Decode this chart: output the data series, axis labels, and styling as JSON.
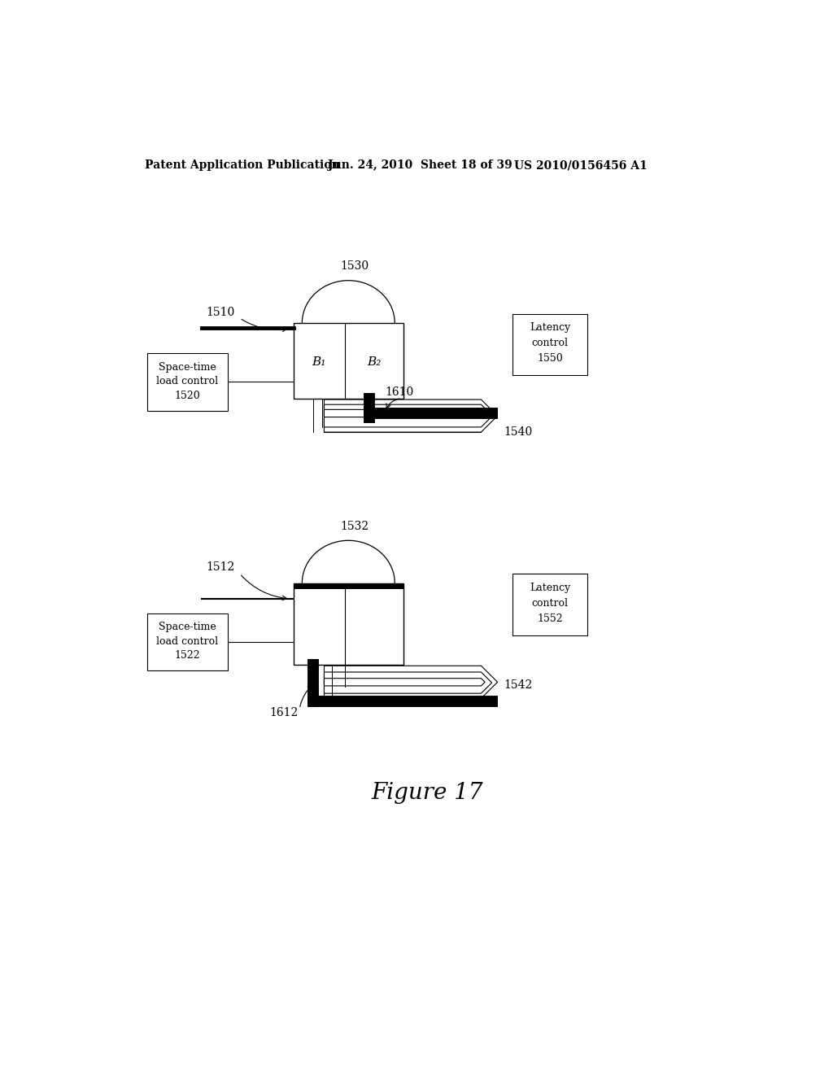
{
  "bg_color": "#ffffff",
  "header_left": "Patent Application Publication",
  "header_mid": "Jun. 24, 2010  Sheet 18 of 39",
  "header_right": "US 2010/0156456 A1",
  "figure_label": "Figure 17",
  "diagram1": {
    "label_1530": "1530",
    "label_1510": "1510",
    "label_1520_lines": [
      "Space-time",
      "load control",
      "1520"
    ],
    "label_1540": "1540",
    "label_1550_lines": [
      "Latency",
      "control",
      "1550"
    ],
    "label_1610": "1610",
    "b1_label": "B₁",
    "b2_label": "B₂"
  },
  "diagram2": {
    "label_1532": "1532",
    "label_1512": "1512",
    "label_1522_lines": [
      "Space-time",
      "load control",
      "1522"
    ],
    "label_1542": "1542",
    "label_1552_lines": [
      "Latency",
      "control",
      "1552"
    ],
    "label_1612": "1612"
  }
}
